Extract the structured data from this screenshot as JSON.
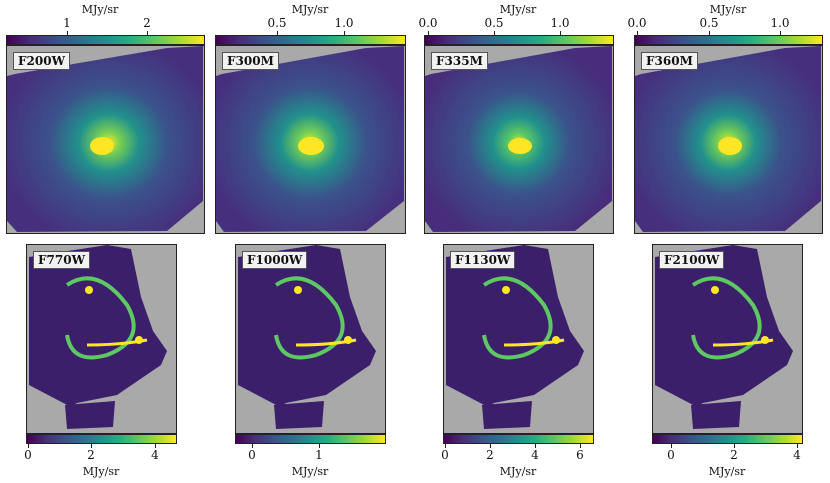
{
  "unit_label": "MJy/sr",
  "colormap": "viridis",
  "background_color": "#a9a9a9",
  "panels": [
    {
      "filter": "F200W",
      "ticks": [
        "1",
        "2"
      ],
      "tick_values": [
        1,
        2
      ],
      "range": [
        0.3,
        2.8
      ]
    },
    {
      "filter": "F300M",
      "ticks": [
        "0.5",
        "1.0"
      ],
      "tick_values": [
        0.5,
        1.0
      ],
      "range": [
        0.1,
        1.55
      ]
    },
    {
      "filter": "F335M",
      "ticks": [
        "0.0",
        "0.5",
        "1.0"
      ],
      "tick_values": [
        0.0,
        0.5,
        1.0
      ],
      "range": [
        0.0,
        1.35
      ]
    },
    {
      "filter": "F360M",
      "ticks": [
        "0.0",
        "0.5",
        "1.0"
      ],
      "tick_values": [
        0.0,
        0.5,
        1.0
      ],
      "range": [
        0.0,
        1.3
      ]
    },
    {
      "filter": "F770W",
      "ticks": [
        "0",
        "2",
        "4"
      ],
      "tick_values": [
        0,
        2,
        4
      ],
      "range": [
        -0.1,
        4.7
      ]
    },
    {
      "filter": "F1000W",
      "ticks": [
        "0",
        "1"
      ],
      "tick_values": [
        0,
        1
      ],
      "range": [
        -0.25,
        2.0
      ]
    },
    {
      "filter": "F1130W",
      "ticks": [
        "0",
        "2",
        "4",
        "6"
      ],
      "tick_values": [
        0,
        2,
        4,
        6
      ],
      "range": [
        -0.1,
        6.6
      ]
    },
    {
      "filter": "F2100W",
      "ticks": [
        "0",
        "2",
        "4"
      ],
      "tick_values": [
        0,
        2,
        4
      ],
      "range": [
        -0.6,
        4.2
      ]
    }
  ]
}
